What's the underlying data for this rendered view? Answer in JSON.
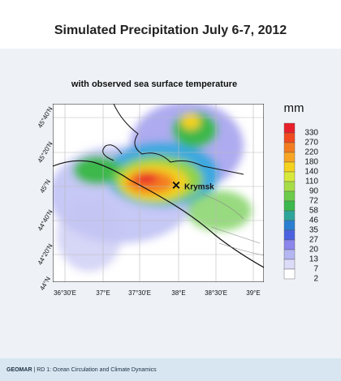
{
  "header": {
    "title": "Simulated Precipitation July 6-7, 2012"
  },
  "map": {
    "subtitle": "with observed sea surface temperature",
    "marker": "Krymsk",
    "lat_labels": [
      "45°40'N",
      "45°20'N",
      "45°N",
      "44°40'N",
      "44°20'N",
      "44°N"
    ],
    "lon_labels": [
      "36°30'E",
      "37°E",
      "37°30'E",
      "38°E",
      "38°30'E",
      "39°E"
    ]
  },
  "legend": {
    "unit": "mm",
    "levels": [
      330,
      270,
      220,
      180,
      140,
      110,
      90,
      72,
      58,
      46,
      35,
      27,
      20,
      13,
      7,
      2
    ],
    "colors": [
      "#e8202a",
      "#f04a1e",
      "#f47c20",
      "#f8a524",
      "#f4d21e",
      "#d8e83a",
      "#a6dc46",
      "#6ccb4a",
      "#3cb84c",
      "#2ea59a",
      "#2a7fd2",
      "#4a62e0",
      "#8a86ec",
      "#b4b6f2",
      "#dcdcf8",
      "#ffffff"
    ]
  },
  "footer": {
    "brand": "GEOMAR",
    "text": "| RD 1: Ocean Circulation and Climate Dynamics"
  }
}
